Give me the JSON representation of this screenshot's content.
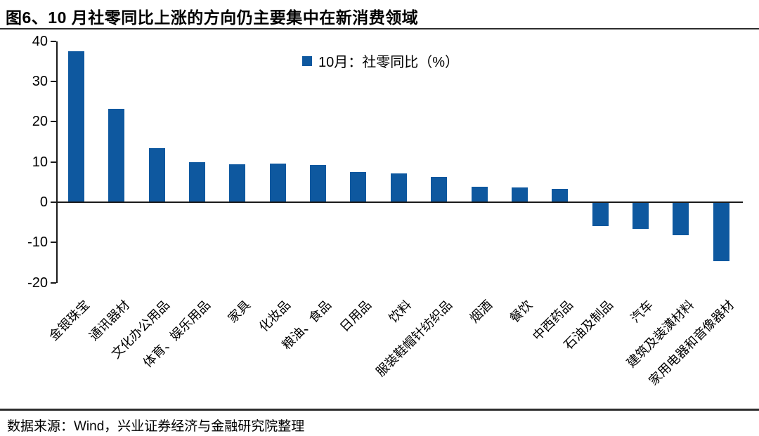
{
  "header": {
    "title": "图6、10 月社零同比上涨的方向仍主要集中在新消费领域"
  },
  "legend": {
    "label": "10月：社零同比（%）"
  },
  "footer": {
    "source": "数据来源：Wind，兴业证券经济与金融研究院整理"
  },
  "colors": {
    "bar": "#0E589F",
    "axis": "#1a1a1a",
    "rule": "#2d2d2d"
  },
  "chart_data": {
    "type": "bar",
    "title": "图6、10 月社零同比上涨的方向仍主要集中在新消费领域",
    "legend_entries": [
      "10月：社零同比（%）"
    ],
    "legend_position": "top-center",
    "categories": [
      "金银珠宝",
      "通讯器材",
      "文化办公用品",
      "体育、娱乐用品",
      "家具",
      "化妆品",
      "粮油、食品",
      "日用品",
      "饮料",
      "服装鞋帽针纺织品",
      "烟酒",
      "餐饮",
      "中西药品",
      "石油及制品",
      "汽车",
      "建筑及装潢材料",
      "家用电器和音像器材"
    ],
    "values": [
      37.5,
      23.2,
      13.4,
      10.0,
      9.5,
      9.6,
      9.3,
      7.5,
      7.2,
      6.3,
      3.9,
      3.7,
      3.4,
      -6.0,
      -6.7,
      -8.2,
      -14.7
    ],
    "xlabel": "",
    "ylabel": "",
    "ylim": [
      -20,
      40
    ],
    "yticks": [
      40,
      30,
      20,
      10,
      0,
      -10,
      -20
    ],
    "grid": false
  }
}
